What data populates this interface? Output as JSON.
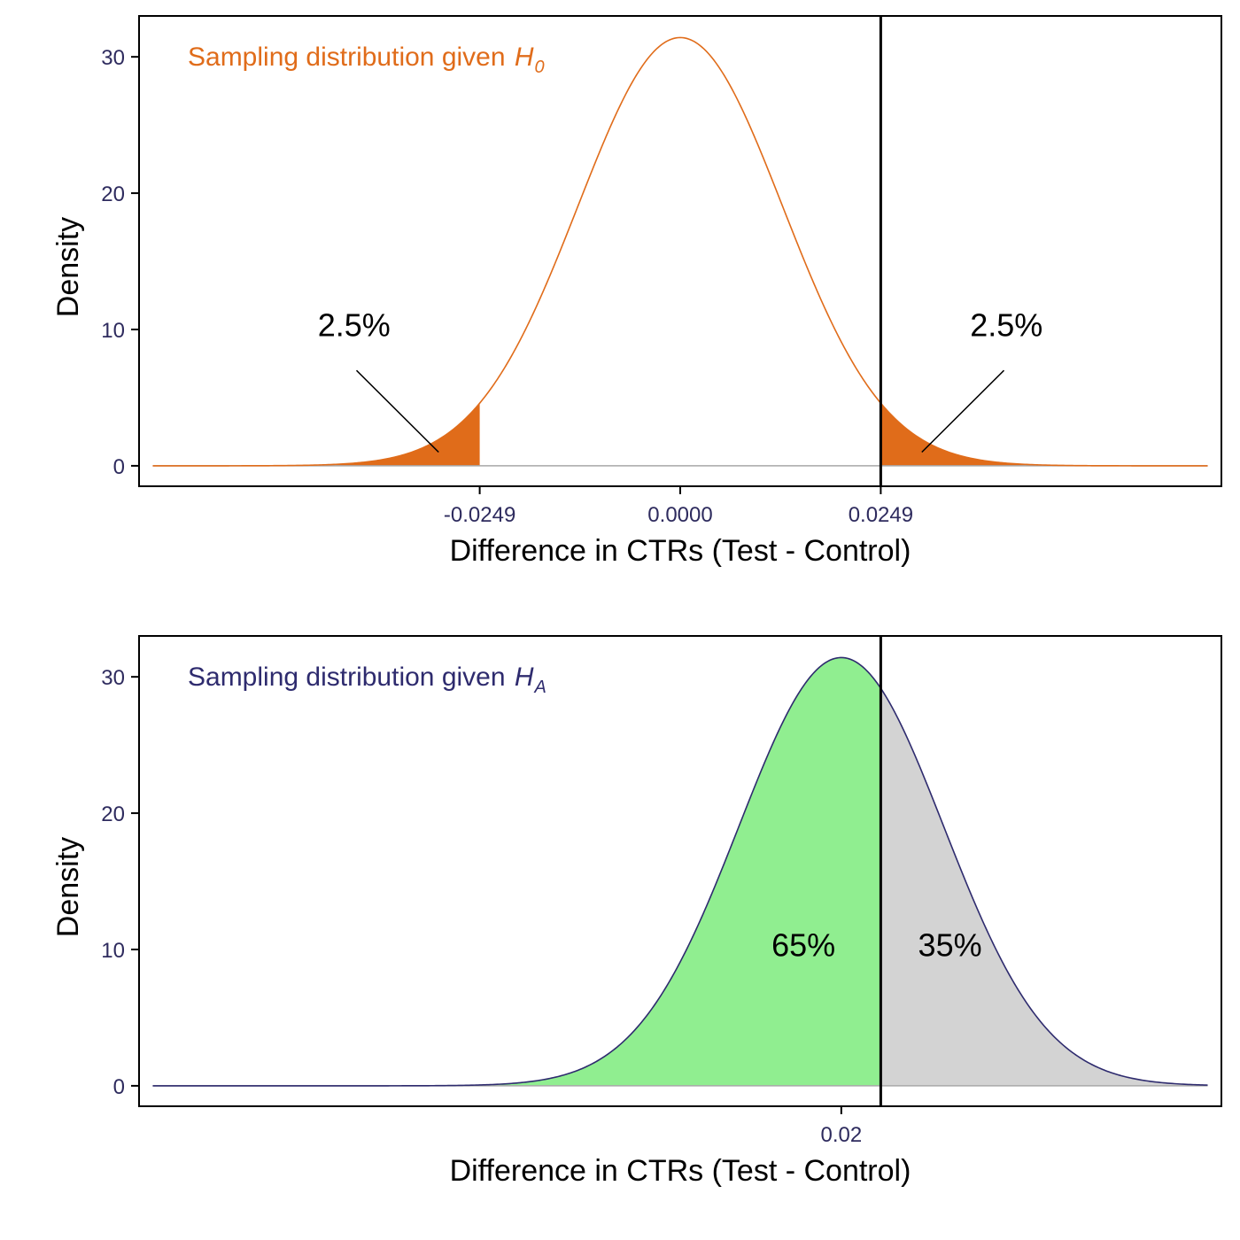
{
  "colors": {
    "axis_text": "#2e2b5e",
    "frame": "#000000",
    "baseline": "#a8a8a8",
    "null_curve": "#e06c1a",
    "null_fill": "#e06c1a",
    "alt_curve": "#2e2b6e",
    "alt_power_fill": "#90ee90",
    "alt_miss_fill": "#d3d3d3",
    "critical_line": "#000000"
  },
  "chart_data": [
    {
      "type": "area",
      "distribution": "normal",
      "mean": 0.0,
      "sd": 0.0127,
      "x_range": [
        -0.0655,
        0.0655
      ],
      "xlim": [
        -0.0672,
        0.0672
      ],
      "ylim": [
        -1.5,
        33
      ],
      "grid": false,
      "xlabel": "Difference in CTRs (Test - Control)",
      "ylabel": "Density",
      "x_ticks": [
        -0.0249,
        0.0,
        0.0249
      ],
      "x_tick_labels": [
        "-0.0249",
        "0.0000",
        "0.0249"
      ],
      "y_ticks": [
        0,
        10,
        20,
        30
      ],
      "y_tick_labels": [
        "0",
        "10",
        "20",
        "30"
      ],
      "label_text": "Sampling distribution given ",
      "label_symbol": "H",
      "label_subscript": "0",
      "critical_line": 0.0249,
      "shaded_regions": [
        {
          "from": -0.0655,
          "to": -0.0249,
          "label": "2.5%"
        },
        {
          "from": 0.0249,
          "to": 0.0655,
          "label": "2.5%"
        }
      ],
      "annotations": [
        {
          "text": "2.5%",
          "text_at": [
            -0.0405,
            9.5
          ],
          "arrow_from": [
            -0.0402,
            7.0
          ],
          "arrow_to": [
            -0.03,
            1.0
          ]
        },
        {
          "text": "2.5%",
          "text_at": [
            0.0405,
            9.5
          ],
          "arrow_from": [
            0.0402,
            7.0
          ],
          "arrow_to": [
            0.03,
            1.0
          ]
        }
      ]
    },
    {
      "type": "area",
      "distribution": "normal",
      "mean": 0.02,
      "sd": 0.0127,
      "x_range": [
        -0.0655,
        0.0655
      ],
      "xlim": [
        -0.0672,
        0.0672
      ],
      "ylim": [
        -1.5,
        33
      ],
      "grid": false,
      "xlabel": "Difference in CTRs (Test - Control)",
      "ylabel": "Density",
      "x_ticks": [
        0.02
      ],
      "x_tick_labels": [
        "0.02"
      ],
      "y_ticks": [
        0,
        10,
        20,
        30
      ],
      "y_tick_labels": [
        "0",
        "10",
        "20",
        "30"
      ],
      "label_text": "Sampling distribution given ",
      "label_symbol": "H",
      "label_subscript": "A",
      "critical_line": 0.0249,
      "shaded_regions": [
        {
          "from": -0.0655,
          "to": 0.0249,
          "label": "65%"
        },
        {
          "from": 0.0249,
          "to": 0.0655,
          "label": "35%"
        }
      ],
      "annotations": [
        {
          "text": "65%",
          "text_at": [
            0.0153,
            9.5
          ]
        },
        {
          "text": "35%",
          "text_at": [
            0.0335,
            9.5
          ]
        }
      ]
    }
  ]
}
